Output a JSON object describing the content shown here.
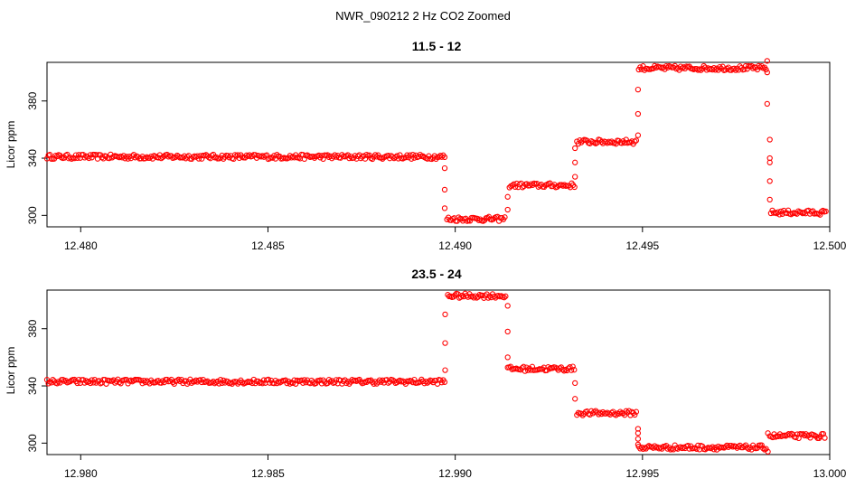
{
  "figure_title": "NWR_090212  2 Hz CO2 Zoomed",
  "colors": {
    "points": "#ff0000",
    "axes": "#000000",
    "background": "#ffffff"
  },
  "chart_data": [
    {
      "type": "scatter",
      "title": "11.5 - 12",
      "xlabel": "",
      "ylabel": "Licor ppm",
      "xlim": [
        12.4791,
        12.5
      ],
      "ylim": [
        292,
        407
      ],
      "xticks": [
        12.48,
        12.485,
        12.49,
        12.495,
        12.5
      ],
      "xtick_labels": [
        "12.480",
        "12.485",
        "12.490",
        "12.495",
        "12.500"
      ],
      "yticks": [
        300,
        340,
        380
      ],
      "ytick_labels": [
        "300",
        "340",
        "380"
      ],
      "segments": [
        {
          "x0": 12.4791,
          "x1": 12.48975,
          "y": 341
        },
        {
          "x0": 12.48978,
          "x1": 12.49135,
          "y": 297.5
        },
        {
          "x0": 12.49145,
          "x1": 12.4932,
          "y": 321
        },
        {
          "x0": 12.49325,
          "x1": 12.49485,
          "y": 351.5
        },
        {
          "x0": 12.4949,
          "x1": 12.4983,
          "y": 403
        },
        {
          "x0": 12.49843,
          "x1": 12.4999,
          "y": 302
        }
      ],
      "transitions": [
        {
          "x": 12.48972,
          "y": [
            333,
            318,
            305
          ]
        },
        {
          "x": 12.4914,
          "y": [
            304,
            313
          ]
        },
        {
          "x": 12.4932,
          "y": [
            327,
            337,
            347
          ]
        },
        {
          "x": 12.49488,
          "y": [
            356,
            371,
            388
          ]
        },
        {
          "x": 12.49833,
          "y": [
            408,
            400,
            378
          ]
        },
        {
          "x": 12.4984,
          "y": [
            353,
            340,
            337,
            324,
            311
          ]
        }
      ]
    },
    {
      "type": "scatter",
      "title": "23.5 - 24",
      "xlabel": "",
      "ylabel": "Licor ppm",
      "xlim": [
        12.9791,
        13.0
      ],
      "ylim": [
        292,
        407
      ],
      "xticks": [
        12.98,
        12.985,
        12.99,
        12.995,
        13.0
      ],
      "xtick_labels": [
        "12.980",
        "12.985",
        "12.990",
        "12.995",
        "13.000"
      ],
      "yticks": [
        300,
        340,
        380
      ],
      "ytick_labels": [
        "300",
        "340",
        "380"
      ],
      "segments": [
        {
          "x0": 12.9791,
          "x1": 12.98975,
          "y": 343
        },
        {
          "x0": 12.9898,
          "x1": 12.99135,
          "y": 403
        },
        {
          "x0": 12.9914,
          "x1": 12.9932,
          "y": 352
        },
        {
          "x0": 12.99325,
          "x1": 12.99485,
          "y": 321
        },
        {
          "x0": 12.9949,
          "x1": 12.9983,
          "y": 297
        },
        {
          "x0": 12.9984,
          "x1": 12.9999,
          "y": 305
        }
      ],
      "transitions": [
        {
          "x": 12.98973,
          "y": [
            351,
            370,
            390
          ]
        },
        {
          "x": 12.9914,
          "y": [
            396,
            378,
            360
          ]
        },
        {
          "x": 12.9932,
          "y": [
            342,
            331
          ]
        },
        {
          "x": 12.99488,
          "y": [
            310,
            307,
            303,
            299
          ]
        },
        {
          "x": 12.99835,
          "y": [
            294,
            307
          ]
        }
      ]
    }
  ]
}
